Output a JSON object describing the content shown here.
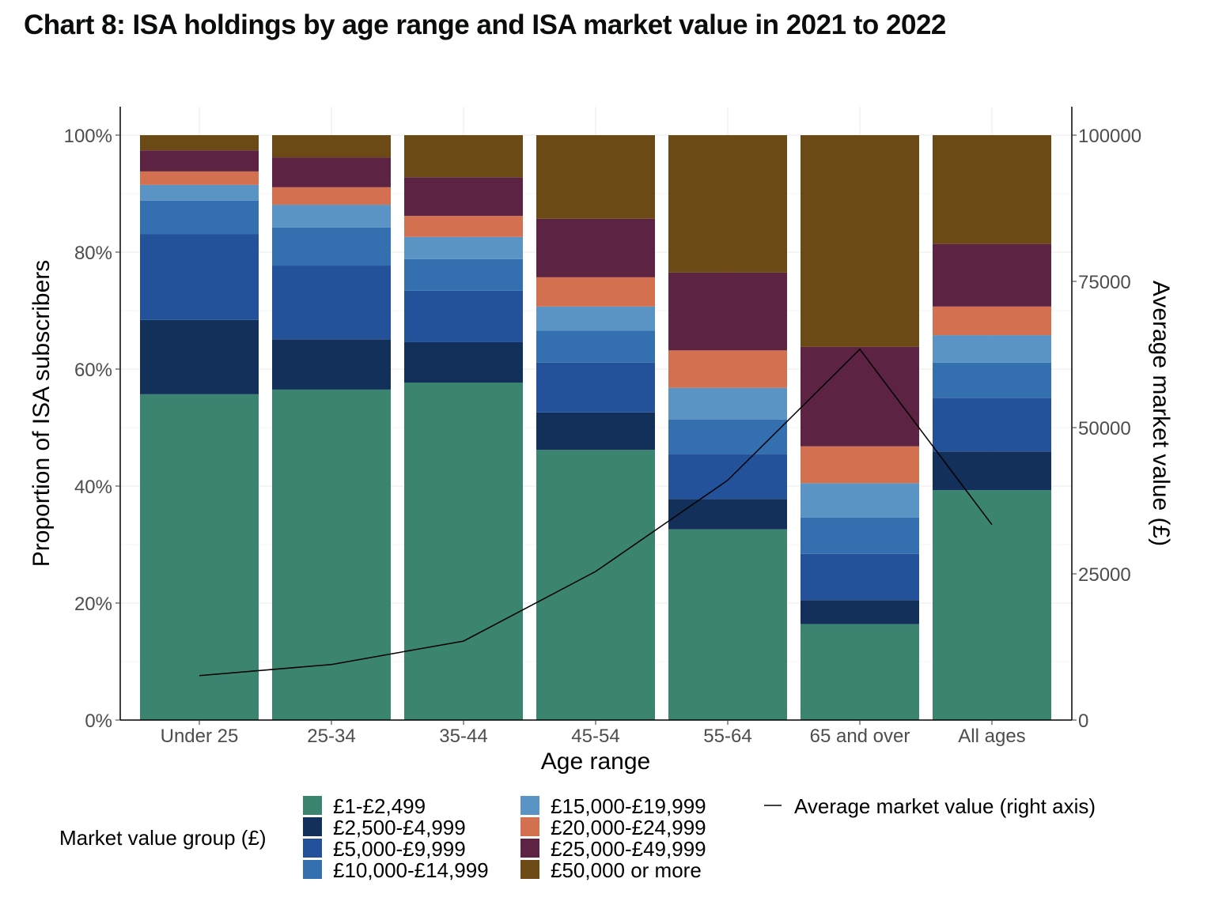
{
  "chart_data": {
    "type": "bar",
    "stacked": true,
    "title": "Chart 8: ISA holdings by age range and ISA market value in 2021 to 2022",
    "xlabel": "Age range",
    "ylabel": "Proportion of ISA subscribers",
    "y2label": "Average market value (£)",
    "ylim": [
      0,
      100
    ],
    "y2lim": [
      0,
      100000
    ],
    "yticks": [
      "0%",
      "20%",
      "40%",
      "60%",
      "80%",
      "100%"
    ],
    "y2ticks": [
      "0",
      "25000",
      "50000",
      "75000",
      "100000"
    ],
    "grid": true,
    "legend_title": "Market value group (£)",
    "legend_position": "bottom",
    "categories": [
      "Under 25",
      "25-34",
      "35-44",
      "45-54",
      "55-64",
      "65 and over",
      "All ages"
    ],
    "series": [
      {
        "name": "£1-£2,499",
        "color": "#3a8470",
        "values": [
          55.7,
          56.5,
          57.7,
          46.2,
          32.6,
          16.4,
          39.3
        ]
      },
      {
        "name": "£2,500-£4,999",
        "color": "#12305a",
        "values": [
          12.7,
          8.6,
          6.9,
          6.4,
          5.2,
          4.1,
          6.6
        ]
      },
      {
        "name": "£5,000-£9,999",
        "color": "#24529a",
        "values": [
          14.7,
          12.6,
          8.8,
          8.5,
          7.7,
          7.9,
          9.2
        ]
      },
      {
        "name": "£10,000-£14,999",
        "color": "#3470b0",
        "values": [
          5.7,
          6.5,
          5.4,
          5.5,
          5.9,
          6.2,
          6.0
        ]
      },
      {
        "name": "£15,000-£19,999",
        "color": "#5a94c4",
        "values": [
          2.7,
          3.9,
          3.8,
          4.1,
          5.4,
          5.9,
          4.7
        ]
      },
      {
        "name": "£20,000-£24,999",
        "color": "#d27050",
        "values": [
          2.3,
          3.0,
          3.6,
          5.0,
          6.4,
          6.3,
          4.9
        ]
      },
      {
        "name": "£25,000-£49,999",
        "color": "#5c2342",
        "values": [
          3.6,
          5.1,
          6.6,
          10.0,
          13.3,
          17.0,
          10.7
        ]
      },
      {
        "name": "£50,000 or more",
        "color": "#6b4a16",
        "values": [
          2.6,
          3.8,
          7.2,
          14.3,
          23.5,
          36.2,
          18.6
        ]
      }
    ],
    "line": {
      "name": "Average market value (right axis)",
      "color": "#000000",
      "axis": "right",
      "values": [
        7600,
        9500,
        13500,
        25400,
        41000,
        63400,
        33400
      ]
    }
  }
}
